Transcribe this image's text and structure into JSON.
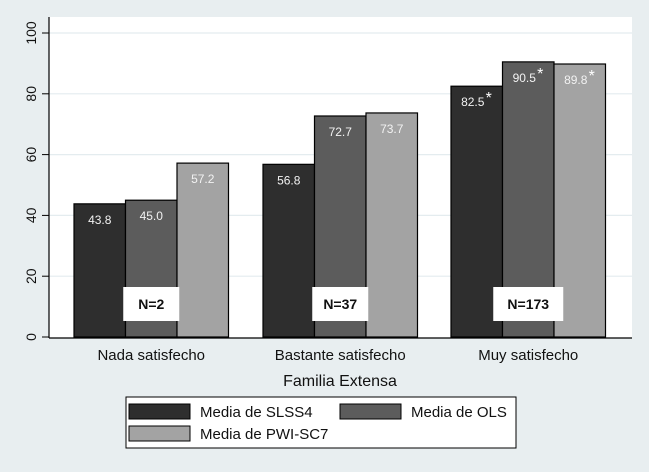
{
  "chart_data": {
    "type": "bar",
    "title": "",
    "xlabel": "Familia Extensa",
    "ylabel": "",
    "ylim": [
      0,
      100
    ],
    "yticks": [
      0,
      20,
      40,
      60,
      80,
      100
    ],
    "grid": true,
    "categories": [
      "Nada satisfecho",
      "Bastante satisfecho",
      "Muy satisfecho"
    ],
    "series": [
      {
        "name": "Media de SLSS4",
        "color": "#2e2e2e",
        "values": [
          43.8,
          56.8,
          82.5
        ],
        "labels": [
          "43.8",
          "56.8",
          "82.5"
        ],
        "significant": [
          false,
          false,
          true
        ]
      },
      {
        "name": "Media de OLS",
        "color": "#5c5c5c",
        "values": [
          45.0,
          72.7,
          90.5
        ],
        "labels": [
          "45.0",
          "72.7",
          "90.5"
        ],
        "significant": [
          false,
          false,
          true
        ]
      },
      {
        "name": "Media de PWI-SC7",
        "color": "#a3a3a3",
        "values": [
          57.2,
          73.7,
          89.8
        ],
        "labels": [
          "57.2",
          "73.7",
          "89.8"
        ],
        "significant": [
          false,
          false,
          true
        ]
      }
    ],
    "annotations": [
      "N=2",
      "N=37",
      "N=173"
    ],
    "significance_marker": "*",
    "legend": {
      "placement": "bottom",
      "columns": 2
    }
  }
}
